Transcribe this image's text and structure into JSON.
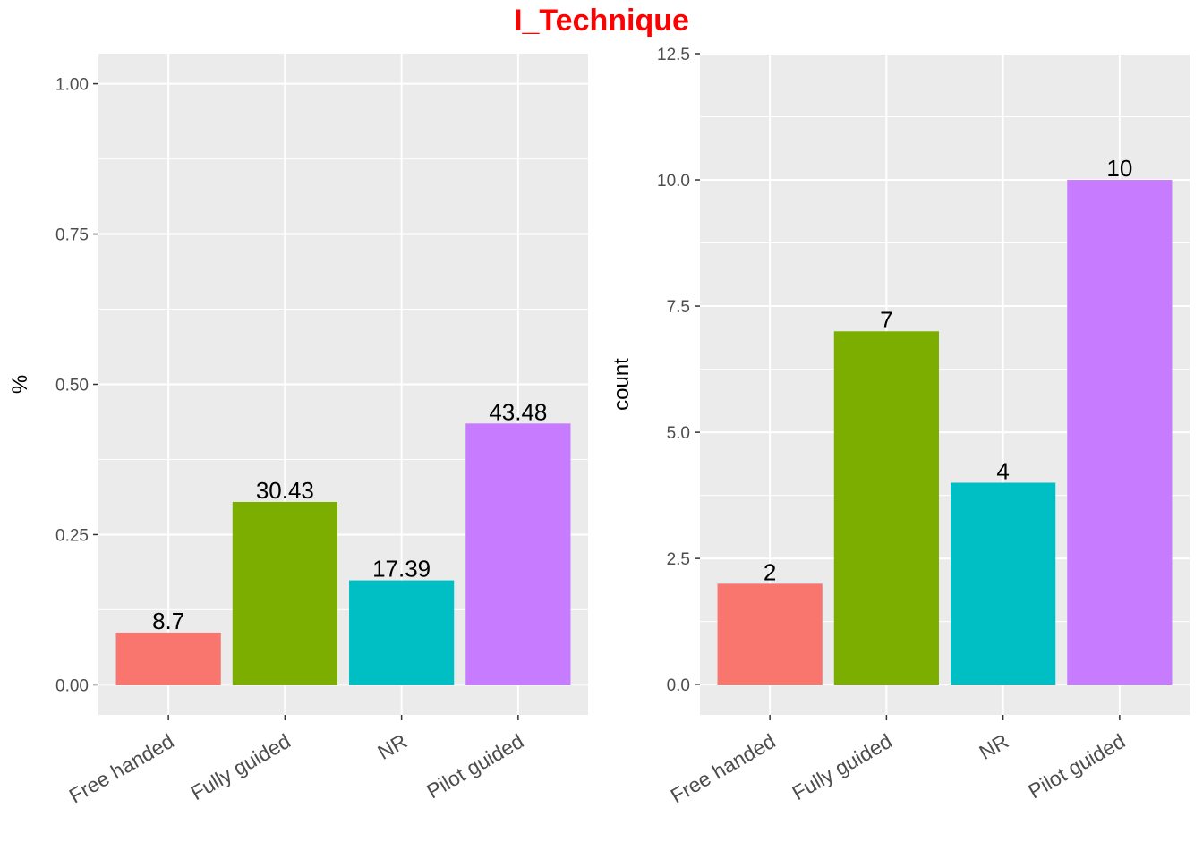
{
  "title": "I_Technique",
  "colors": {
    "title": "#ff0000",
    "panel_bg": "#ebebeb",
    "grid_major": "#ffffff",
    "bars": [
      "#f8766d",
      "#7cae00",
      "#00bfc4",
      "#c77cff"
    ]
  },
  "chart_data": [
    {
      "type": "bar",
      "categories": [
        "Free handed",
        "Fully guided",
        "NR",
        "Pilot guided"
      ],
      "values": [
        0.087,
        0.3043,
        0.1739,
        0.4348
      ],
      "labels": [
        "8.7",
        "30.43",
        "17.39",
        "43.48"
      ],
      "ylabel": "%",
      "xlabel": "",
      "ylim": [
        -0.05,
        1.05
      ],
      "yticks": [
        0,
        0.25,
        0.5,
        0.75,
        1
      ],
      "yticklabels": [
        "0.00",
        "0.25",
        "0.50",
        "0.75",
        "1.00"
      ],
      "grid": true,
      "legend": "none"
    },
    {
      "type": "bar",
      "categories": [
        "Free handed",
        "Fully guided",
        "NR",
        "Pilot guided"
      ],
      "values": [
        2,
        7,
        4,
        10
      ],
      "labels": [
        "2",
        "7",
        "4",
        "10"
      ],
      "ylabel": "count",
      "xlabel": "",
      "ylim": [
        -0.6,
        12.5
      ],
      "yticks": [
        0,
        2.5,
        5,
        7.5,
        10,
        12.5
      ],
      "yticklabels": [
        "0.0",
        "2.5",
        "5.0",
        "7.5",
        "10.0",
        "12.5"
      ],
      "grid": true,
      "legend": "none"
    }
  ]
}
